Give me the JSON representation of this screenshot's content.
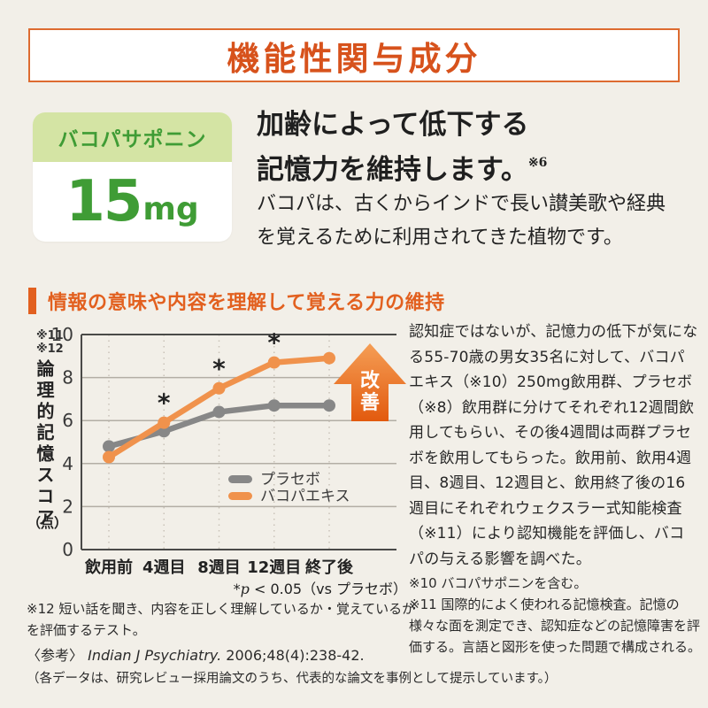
{
  "colors": {
    "page_bg": "#f2efe8",
    "accent": "#e2601f",
    "header_text": "#d7521c",
    "header_border": "#dd6b30",
    "green": "#3f9c35",
    "green_bg": "#d4e4a4",
    "text_dark": "#1f1f1f",
    "frame_dark": "#4a4a48",
    "grid_gray": "#b3aea5",
    "dash_gray": "#c9c3b9",
    "arrow_top": "#f59e55",
    "arrow_bottom": "#e25a0e"
  },
  "header": {
    "title": "機能性関与成分"
  },
  "ingredient_card": {
    "name": "バコパサポニン",
    "amount": "15",
    "unit": "mg"
  },
  "headline": {
    "line1": "加齢によって低下する",
    "line2": "記憶力を維持します。",
    "note_ref": "※6"
  },
  "lead": {
    "line1": "バコパは、古くからインドで長い讃美歌や経典",
    "line2": "を覚えるために利用されてきた植物です。"
  },
  "section": {
    "title": "情報の意味や内容を理解して覚える力の維持"
  },
  "chart_data": {
    "type": "line",
    "categories": [
      "飲用前",
      "4週目",
      "8週目",
      "12週目",
      "終了後"
    ],
    "series": [
      {
        "id": "placebo",
        "name": "プラセボ",
        "color": "#878787",
        "values": [
          4.8,
          5.5,
          6.4,
          6.7,
          6.7
        ]
      },
      {
        "id": "bacopa-extract",
        "name": "バコパエキス",
        "color": "#f0924c",
        "values": [
          4.3,
          5.9,
          7.5,
          8.7,
          8.9
        ]
      }
    ],
    "significance": {
      "marker": "*",
      "on_series": "バコパエキス",
      "at_categories": [
        "4週目",
        "8週目",
        "12週目"
      ]
    },
    "ylabel": "論理的記憶スコア",
    "ylabel_unit": "（点）",
    "ylabel_refs": [
      "※11",
      "※12"
    ],
    "xlabel": "",
    "ylim": [
      0,
      10
    ],
    "yticks": [
      0,
      2,
      4,
      6,
      8,
      10
    ],
    "grid": "horizontal solid, vertical dashed",
    "legend_position": "inside right middle",
    "annotation": "改善",
    "footnote_parts": {
      "star": "*",
      "p": "p",
      "rest": " < 0.05（vs プラセボ）"
    }
  },
  "study": {
    "text": "認知症ではないが、記憶力の低下が気になる55-70歳の男女35名に対して、バコパエキス（※10）250mg飲用群、プラセボ（※8）飲用群に分けてそれぞれ12週間飲用してもらい、その後4週間は両群プラセボを飲用してもらった。飲用前、飲用4週目、8週目、12週目と、飲用終了後の16週目にそれぞれウェクスラー式知能検査（※11）により認知機能を評価し、バコパの与える影響を調べた。"
  },
  "notes_right": [
    "※10 バコパサポニンを含む。",
    "※11 国際的によく使われる記憶検査。記憶の様々な面を測定でき、認知症などの記憶障害を評価する。言語と図形を使った問題で構成される。"
  ],
  "notes_left": {
    "note12": "※12 短い話を聞き、内容を正しく理解しているか・覚えているかを評価するテスト。"
  },
  "reference": {
    "label": "〈参考〉",
    "journal": "Indian J Psychiatry.",
    "detail": " 2006;48(4):238-42."
  },
  "disclaimer": {
    "text": "（各データは、研究レビュー採用論文のうち、代表的な論文を事例として提示しています。）"
  }
}
